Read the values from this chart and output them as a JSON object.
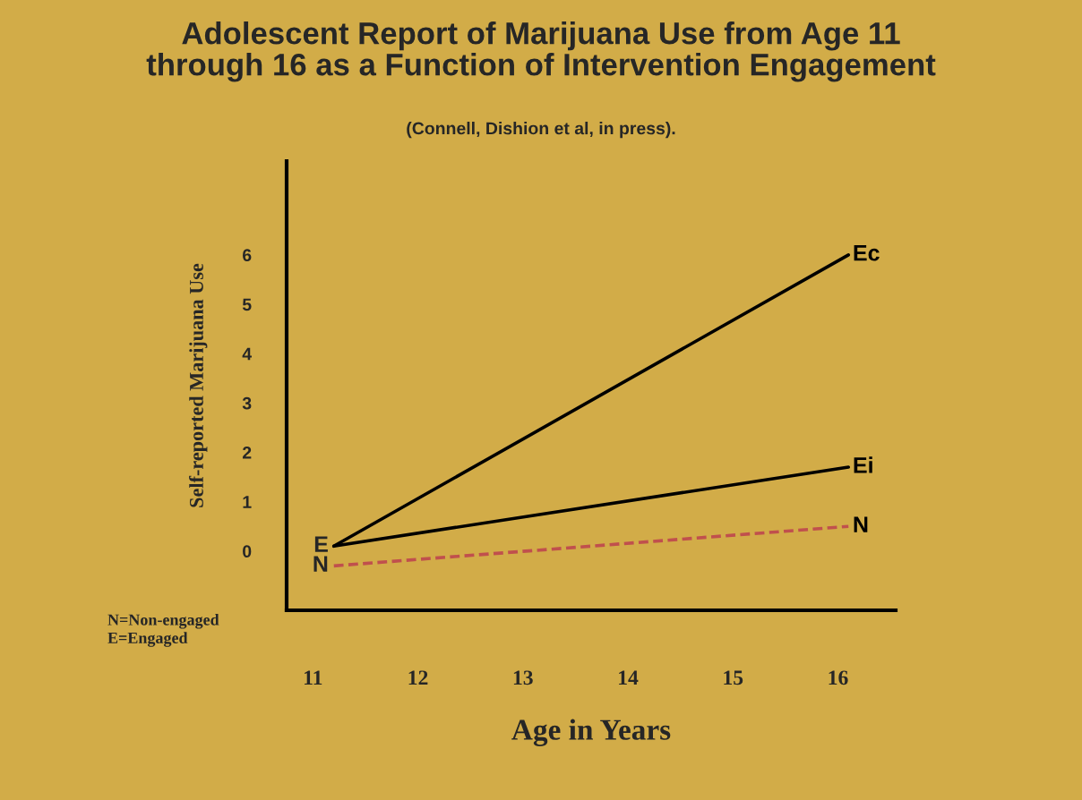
{
  "chart_data": {
    "type": "line",
    "title": "Adolescent Report of Marijuana Use from Age 11\nthrough 16 as a Function of Intervention Engagement",
    "subtitle": "(Connell, Dishion et al, in press).",
    "xlabel": "Age in Years",
    "ylabel": "Self-reported Marijuana Use",
    "x": [
      11.2,
      16.1
    ],
    "series": [
      {
        "name": "Ec",
        "color": "#000000",
        "values": [
          0.1,
          6.0
        ]
      },
      {
        "name": "Ei",
        "color": "#000000",
        "values": [
          0.1,
          1.7
        ]
      },
      {
        "name": "N",
        "color": "#c0504d",
        "values": [
          -0.3,
          0.5
        ],
        "line_style": "dashed"
      }
    ],
    "annotations": [
      {
        "text": "E",
        "x": 11.2,
        "y": 0.1
      },
      {
        "text": "N",
        "x": 11.2,
        "y": -0.3
      },
      "N=Non-engaged\nE=Engaged"
    ],
    "xlim": [
      10.75,
      16.55
    ],
    "ylim": [
      -1.2,
      7.9
    ],
    "xticks": [
      11,
      12,
      13,
      14,
      15,
      16
    ],
    "yticks": [
      0,
      1,
      2,
      3,
      4,
      5,
      6
    ],
    "grid": false,
    "legend": false,
    "marker": "none"
  }
}
